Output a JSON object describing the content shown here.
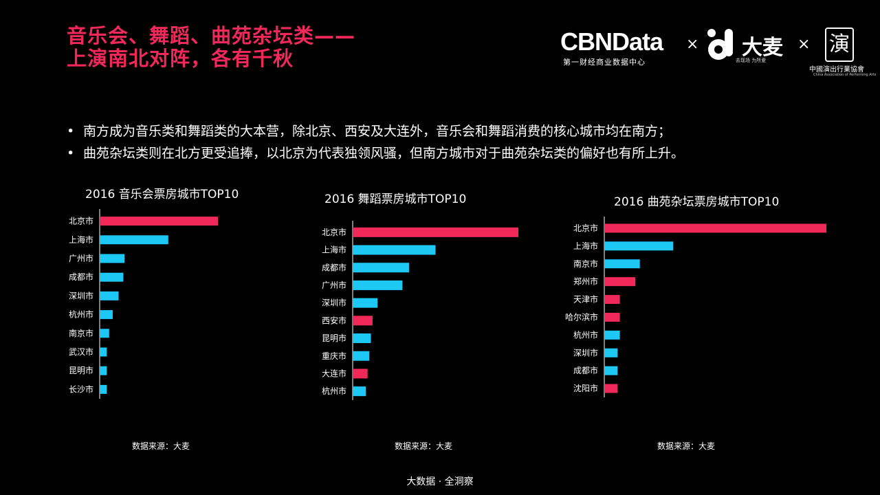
{
  "header": {
    "title_line1": "音乐会、舞蹈、曲苑杂坛类——",
    "title_line2": "上演南北对阵，各有千秋"
  },
  "logos": {
    "cbn_name": "CBNData",
    "cbn_sub": "第一财经商业数据中心",
    "times": "×",
    "damai_name": "大麦",
    "damai_sub": "去现场 为所爱",
    "assoc_seal": "演",
    "assoc_cn": "中國演出行業協會",
    "assoc_en": "China Association of Performing Arts"
  },
  "bullets": {
    "marker": "•",
    "items": [
      "南方成为音乐类和舞蹈类的大本营，除北京、西安及大连外，音乐会和舞蹈消费的核心城市均在南方；",
      "曲苑杂坛类则在北方更受追捧，以北京为代表独领风骚，但南方城市对于曲苑杂坛类的偏好也有所上升。"
    ]
  },
  "colors": {
    "north": "#f0295a",
    "south": "#1ec8f5",
    "axis": "#ffffff",
    "background": "#000000"
  },
  "chart_data": [
    {
      "type": "bar",
      "orientation": "horizontal",
      "title": "2016 音乐会票房城市TOP10",
      "categories": [
        "北京市",
        "上海市",
        "广州市",
        "成都市",
        "深圳市",
        "杭州市",
        "南京市",
        "武汉市",
        "昆明市",
        "长沙市"
      ],
      "values": [
        100,
        58,
        21,
        20,
        16,
        11,
        8,
        6,
        6,
        6
      ],
      "bar_colors": [
        "#f0295a",
        "#1ec8f5",
        "#1ec8f5",
        "#1ec8f5",
        "#1ec8f5",
        "#1ec8f5",
        "#1ec8f5",
        "#1ec8f5",
        "#1ec8f5",
        "#1ec8f5"
      ],
      "xlim": [
        0,
        100
      ],
      "source": "数据来源：大麦"
    },
    {
      "type": "bar",
      "orientation": "horizontal",
      "title": "2016 舞蹈票房城市TOP10",
      "categories": [
        "北京市",
        "上海市",
        "成都市",
        "广州市",
        "深圳市",
        "西安市",
        "昆明市",
        "重庆市",
        "大连市",
        "杭州市"
      ],
      "values": [
        100,
        50,
        34,
        30,
        15,
        12,
        11,
        10,
        9,
        8
      ],
      "bar_colors": [
        "#f0295a",
        "#1ec8f5",
        "#1ec8f5",
        "#1ec8f5",
        "#1ec8f5",
        "#f0295a",
        "#1ec8f5",
        "#1ec8f5",
        "#f0295a",
        "#1ec8f5"
      ],
      "xlim": [
        0,
        100
      ],
      "source": "数据来源：大麦"
    },
    {
      "type": "bar",
      "orientation": "horizontal",
      "title": "2016 曲苑杂坛票房城市TOP10",
      "categories": [
        "北京市",
        "上海市",
        "南京市",
        "郑州市",
        "天津市",
        "哈尔滨市",
        "杭州市",
        "深圳市",
        "成都市",
        "沈阳市"
      ],
      "values": [
        100,
        31,
        16,
        14,
        7,
        7,
        7,
        6,
        6,
        6
      ],
      "bar_colors": [
        "#f0295a",
        "#1ec8f5",
        "#1ec8f5",
        "#f0295a",
        "#f0295a",
        "#f0295a",
        "#1ec8f5",
        "#1ec8f5",
        "#1ec8f5",
        "#f0295a"
      ],
      "xlim": [
        0,
        100
      ],
      "source": "数据来源：大麦"
    }
  ],
  "footer": {
    "text": "大数据 · 全洞察"
  }
}
